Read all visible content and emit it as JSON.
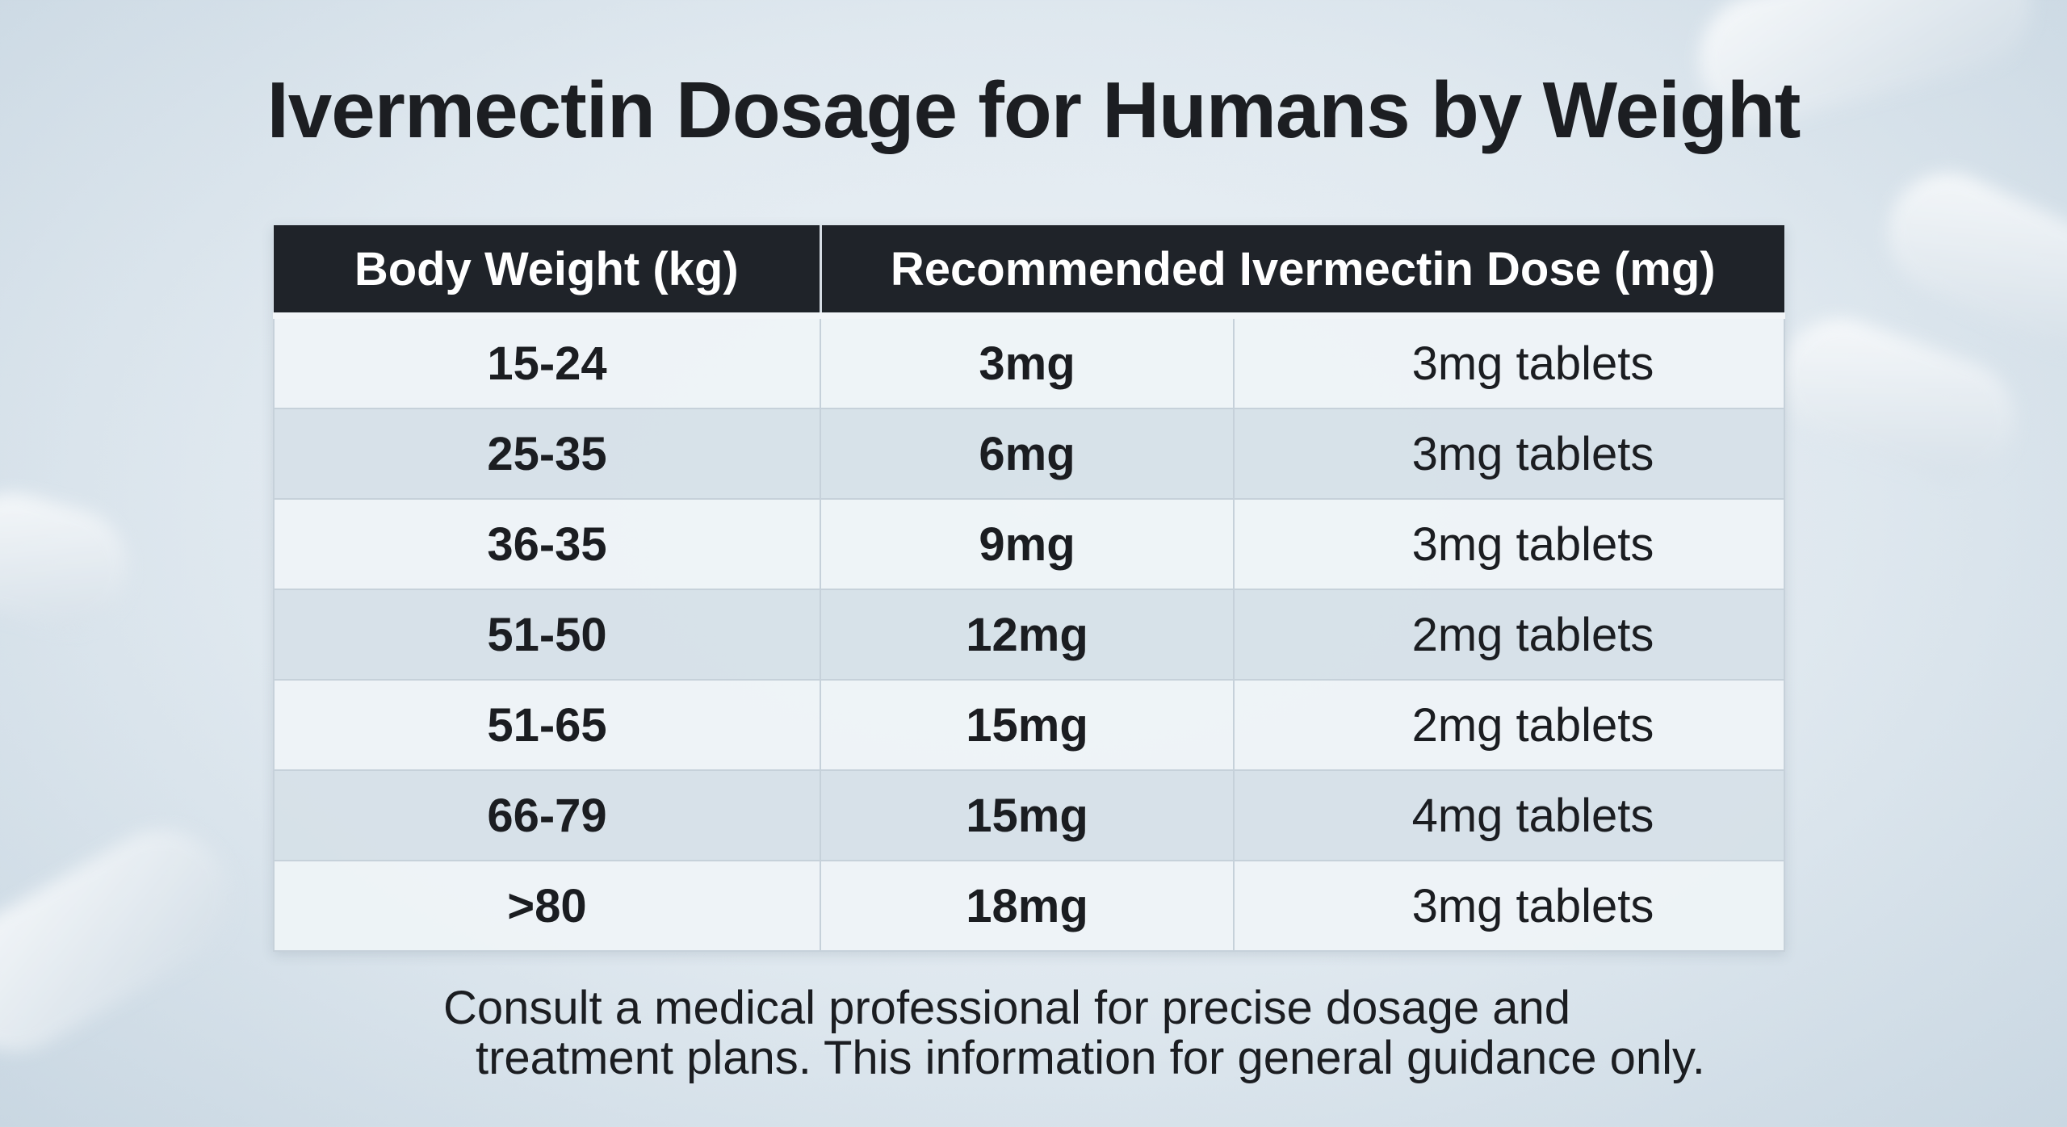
{
  "title": "Ivermectin Dosage for Humans by Weight",
  "table": {
    "headers": [
      "Body Weight (kg)",
      "Recommended Ivermectin Dose (mg)"
    ],
    "rows": [
      {
        "weight": "15-24",
        "dose": "3mg",
        "tablets": "3mg tablets"
      },
      {
        "weight": "25-35",
        "dose": "6mg",
        "tablets": "3mg tablets"
      },
      {
        "weight": "36-35",
        "dose": "9mg",
        "tablets": "3mg tablets"
      },
      {
        "weight": "51-50",
        "dose": "12mg",
        "tablets": "2mg tablets"
      },
      {
        "weight": "51-65",
        "dose": "15mg",
        "tablets": "2mg tablets"
      },
      {
        "weight": "66-79",
        "dose": "15mg",
        "tablets": "4mg tablets"
      },
      {
        "weight": ">80",
        "dose": "18mg",
        "tablets": "3mg tablets"
      }
    ]
  },
  "footer": {
    "line1": "Consult a medical professional for precise dosage and",
    "line2": "treatment plans. This information for general guidance only."
  },
  "colors": {
    "header_bg": "#1f2329",
    "row_light": "#eef3f7",
    "row_dark": "#d6e0e8"
  }
}
